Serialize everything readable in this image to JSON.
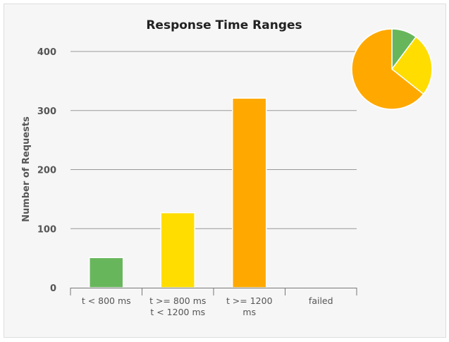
{
  "chart_data": {
    "type": "bar",
    "title": "Response Time Ranges",
    "xlabel": "",
    "ylabel": "Number of Requests",
    "ylim": [
      0,
      400
    ],
    "yticks": [
      0,
      100,
      200,
      300,
      400
    ],
    "grid": true,
    "categories": [
      [
        "t < 800 ms"
      ],
      [
        "t >= 800 ms",
        "t < 1200 ms"
      ],
      [
        "t >= 1200",
        "ms"
      ],
      [
        "failed"
      ]
    ],
    "values": [
      51,
      127,
      321,
      0
    ],
    "colors": [
      "#68b65c",
      "#ffdd00",
      "#ffa900",
      "#f15b4f"
    ],
    "pie": {
      "location": "top-right",
      "values": [
        51,
        127,
        321,
        0
      ]
    }
  }
}
